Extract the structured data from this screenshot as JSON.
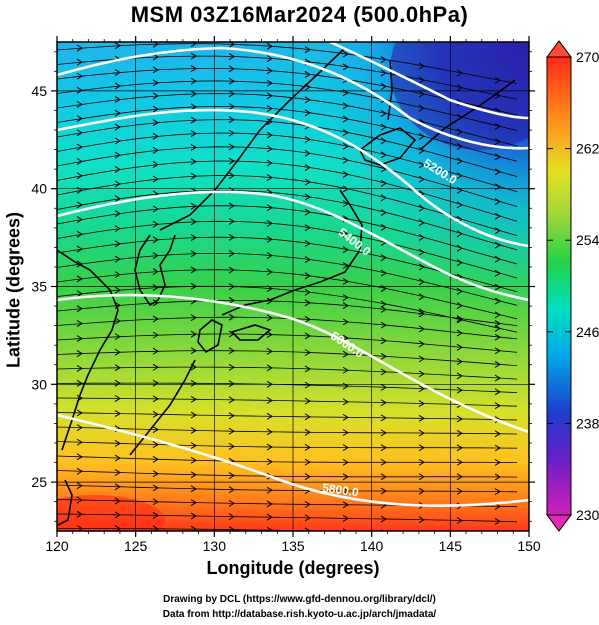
{
  "title": "MSM 03Z16Mar2024 (500.0hPa)",
  "xlabel": "Longitude (degrees)",
  "ylabel": "Latitude  (degrees)",
  "credit_line1": "Drawing by DCL (https://www.gfd-dennou.org/library/dcl/)",
  "credit_line2": "Data from http://database.rish.kyoto-u.ac.jp/arch/jmadata/",
  "x_ticks": [
    "120",
    "125",
    "130",
    "135",
    "140",
    "145",
    "150"
  ],
  "y_ticks": [
    "25",
    "30",
    "35",
    "40",
    "45"
  ],
  "x_range": [
    120,
    150
  ],
  "y_range": [
    22.5,
    47.5
  ],
  "colorbar": {
    "range": [
      230,
      270
    ],
    "labels": [
      "270",
      "262",
      "254",
      "246",
      "238",
      "230"
    ]
  },
  "contour_labels": [
    "5800.0",
    "5600.0",
    "5400.0",
    "5200.0"
  ],
  "colors": {
    "land": "#000000",
    "contour": "#ffffff",
    "streamline": "#000000"
  }
}
